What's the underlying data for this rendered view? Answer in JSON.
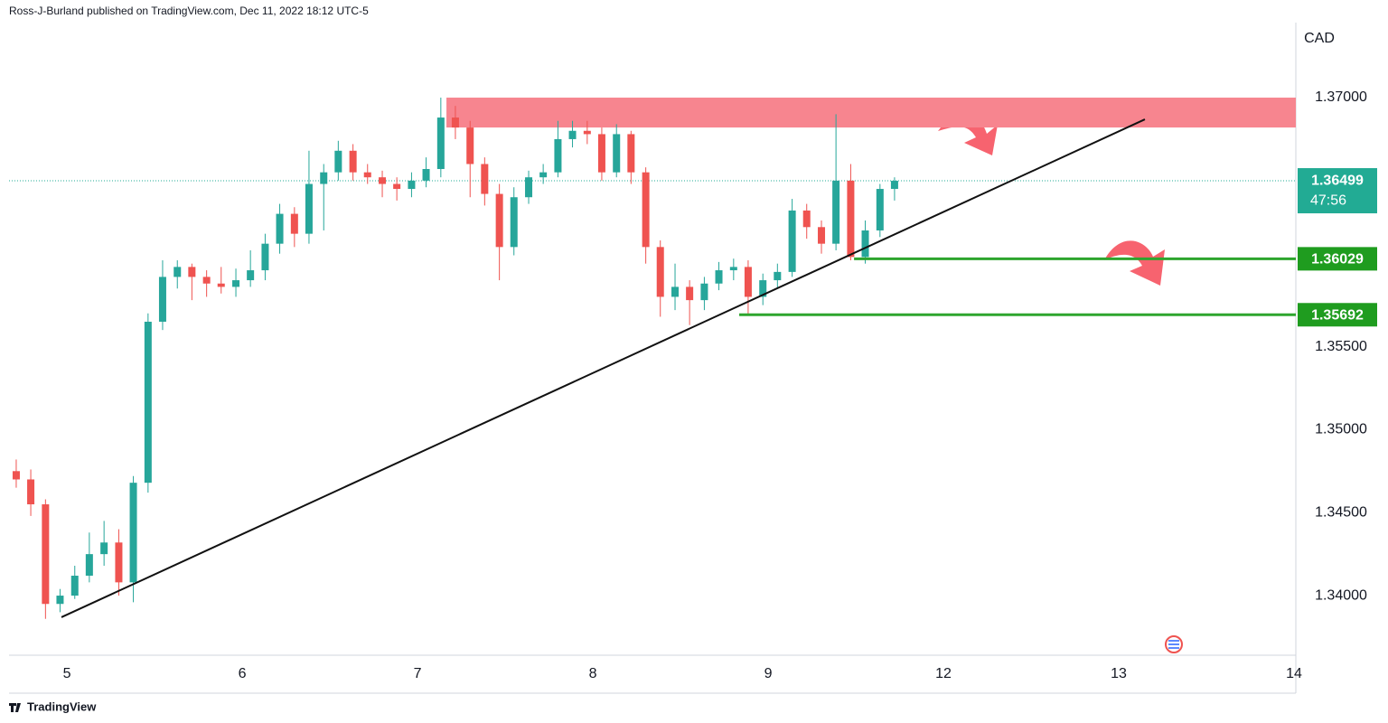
{
  "header": {
    "publisher": "Ross-J-Burland published on TradingView.com, Dec 11, 2022 18:12 UTC-5"
  },
  "footer": {
    "brand": "TradingView"
  },
  "chart_data": {
    "type": "candlestick",
    "currency": "CAD",
    "up_color": "#26a69a",
    "down_color": "#ef5350",
    "grid": false,
    "xlim": [
      -0.33,
      7.01
    ],
    "ylim": [
      1.33641,
      1.37452
    ],
    "xticks": [
      {
        "value": 0,
        "label": "5"
      },
      {
        "value": 1,
        "label": "6"
      },
      {
        "value": 2,
        "label": "7"
      },
      {
        "value": 3,
        "label": "8"
      },
      {
        "value": 4,
        "label": "9"
      },
      {
        "value": 5,
        "label": "12"
      },
      {
        "value": 6,
        "label": "13"
      },
      {
        "value": 7,
        "label": "14"
      }
    ],
    "yticks": [
      {
        "value": 1.34,
        "label": "1.34000"
      },
      {
        "value": 1.345,
        "label": "1.34500"
      },
      {
        "value": 1.35,
        "label": "1.35000"
      },
      {
        "value": 1.355,
        "label": "1.35500"
      },
      {
        "value": 1.37,
        "label": "1.37000"
      }
    ],
    "x": [
      -0.289,
      -0.206,
      -0.122,
      -0.039,
      0.045,
      0.128,
      0.212,
      0.296,
      0.379,
      0.463,
      0.546,
      0.63,
      0.713,
      0.797,
      0.88,
      0.964,
      1.047,
      1.131,
      1.214,
      1.298,
      1.381,
      1.465,
      1.548,
      1.632,
      1.715,
      1.799,
      1.882,
      1.966,
      2.049,
      2.133,
      2.216,
      2.3,
      2.383,
      2.467,
      2.55,
      2.634,
      2.717,
      2.801,
      2.884,
      2.968,
      3.051,
      3.135,
      3.218,
      3.302,
      3.385,
      3.469,
      3.552,
      3.636,
      3.719,
      3.803,
      3.886,
      3.97,
      4.053,
      4.137,
      4.22,
      4.304,
      4.387,
      4.471,
      4.554,
      4.638,
      4.721
    ],
    "open": [
      1.3475,
      1.347,
      1.3455,
      1.3395,
      1.34,
      1.3412,
      1.3425,
      1.3432,
      1.3408,
      1.3468,
      1.3565,
      1.3592,
      1.3598,
      1.3592,
      1.3588,
      1.3586,
      1.359,
      1.3596,
      1.3612,
      1.363,
      1.3618,
      1.3648,
      1.3655,
      1.3668,
      1.3655,
      1.3652,
      1.3648,
      1.3645,
      1.365,
      1.3657,
      1.3688,
      1.3682,
      1.366,
      1.3642,
      1.361,
      1.364,
      1.3652,
      1.3655,
      1.3675,
      1.368,
      1.3678,
      1.3655,
      1.3678,
      1.3655,
      1.361,
      1.358,
      1.3586,
      1.3578,
      1.3588,
      1.3596,
      1.3598,
      1.358,
      1.359,
      1.3595,
      1.3632,
      1.3622,
      1.3612,
      1.365,
      1.3604,
      1.362,
      1.3645
    ],
    "high": [
      1.3482,
      1.3476,
      1.3458,
      1.3404,
      1.3418,
      1.3438,
      1.3445,
      1.344,
      1.3472,
      1.357,
      1.3602,
      1.3602,
      1.36,
      1.3596,
      1.3598,
      1.3597,
      1.3608,
      1.3618,
      1.3636,
      1.3634,
      1.3668,
      1.366,
      1.3674,
      1.3672,
      1.366,
      1.3656,
      1.3652,
      1.3655,
      1.3664,
      1.37,
      1.3695,
      1.3686,
      1.3664,
      1.3648,
      1.3646,
      1.3656,
      1.366,
      1.3686,
      1.3686,
      1.3686,
      1.3682,
      1.3684,
      1.368,
      1.3658,
      1.3614,
      1.36,
      1.359,
      1.3592,
      1.3601,
      1.3603,
      1.3602,
      1.3594,
      1.36,
      1.3639,
      1.3636,
      1.3626,
      1.369,
      1.366,
      1.3626,
      1.3648,
      1.3652
    ],
    "low": [
      1.3465,
      1.3448,
      1.3386,
      1.339,
      1.3398,
      1.3408,
      1.3418,
      1.34,
      1.3396,
      1.3462,
      1.356,
      1.3585,
      1.3578,
      1.358,
      1.3582,
      1.358,
      1.3586,
      1.359,
      1.3606,
      1.361,
      1.3612,
      1.362,
      1.365,
      1.365,
      1.3648,
      1.364,
      1.3638,
      1.364,
      1.3646,
      1.3652,
      1.3675,
      1.364,
      1.3635,
      1.359,
      1.3605,
      1.3636,
      1.3648,
      1.3652,
      1.367,
      1.3672,
      1.365,
      1.3652,
      1.3648,
      1.36,
      1.3568,
      1.3572,
      1.3563,
      1.3572,
      1.3584,
      1.359,
      1.3569,
      1.3575,
      1.3585,
      1.3592,
      1.3615,
      1.3606,
      1.3608,
      1.3602,
      1.36,
      1.3616,
      1.3638
    ],
    "close": [
      1.347,
      1.3455,
      1.3395,
      1.34,
      1.3412,
      1.3425,
      1.3432,
      1.3408,
      1.3468,
      1.3565,
      1.3592,
      1.3598,
      1.3592,
      1.3588,
      1.3586,
      1.359,
      1.3596,
      1.3612,
      1.363,
      1.3618,
      1.3648,
      1.3655,
      1.3668,
      1.3655,
      1.3652,
      1.3648,
      1.3645,
      1.365,
      1.3657,
      1.3688,
      1.3682,
      1.366,
      1.3642,
      1.361,
      1.364,
      1.3652,
      1.3655,
      1.3675,
      1.368,
      1.3678,
      1.3655,
      1.3678,
      1.3655,
      1.361,
      1.358,
      1.3586,
      1.3578,
      1.3588,
      1.3596,
      1.3598,
      1.358,
      1.359,
      1.3595,
      1.3632,
      1.3622,
      1.3612,
      1.365,
      1.3604,
      1.362,
      1.3645,
      1.36499
    ],
    "last_price": {
      "value": 1.36499,
      "countdown": "47:56",
      "color": "#22ab94"
    },
    "zone": {
      "y": [
        1.3682,
        1.37
      ],
      "x_start": 2.165,
      "color": "#f7858f"
    },
    "levels": [
      {
        "value": 1.36029,
        "x_start": 4.49,
        "color": "#2ea52e",
        "tag_color": "#1f9c1f"
      },
      {
        "value": 1.35692,
        "x_start": 3.835,
        "color": "#2ea52e",
        "tag_color": "#1f9c1f"
      }
    ],
    "trendline": {
      "x": [
        -0.031,
        6.149
      ],
      "y": [
        1.3387,
        1.36869
      ],
      "color": "#111111"
    }
  }
}
